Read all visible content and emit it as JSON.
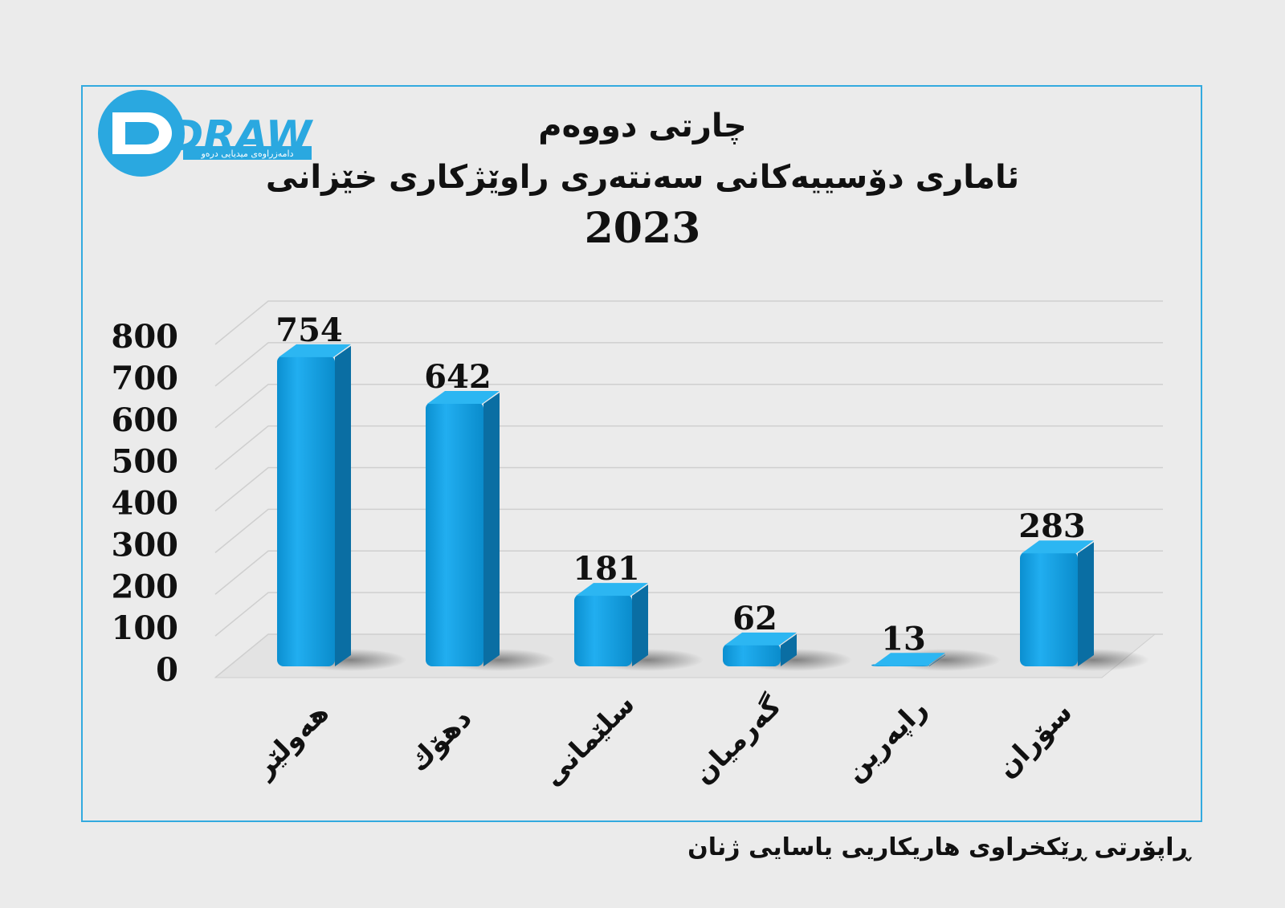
{
  "header": {
    "title_line1": "چارتی دووەم",
    "title_line2": "ئاماری دۆسییەکانی سەنتەری راوێژکاری خێزانی",
    "title_line3": "2023"
  },
  "logo": {
    "text": "DRAW",
    "tagline": "دامەزراوەی میدیایی درەو",
    "color": "#2aa8e0"
  },
  "chart_data": {
    "type": "bar",
    "categories": [
      "هەولێر",
      "دهۆك",
      "سلێمانی",
      "گەرمیان",
      "راپەرین",
      "سۆران"
    ],
    "values": [
      754,
      642,
      181,
      62,
      13,
      283
    ],
    "ylim": [
      0,
      800
    ],
    "yticks": [
      0,
      100,
      200,
      300,
      400,
      500,
      600,
      700,
      800
    ],
    "bar_color": "#1aa2e0",
    "grid": true,
    "style": "3d"
  },
  "footer": {
    "source": "ڕاپۆرتی ڕێکخراوی هاریکاریی یاسایی ژنان"
  }
}
